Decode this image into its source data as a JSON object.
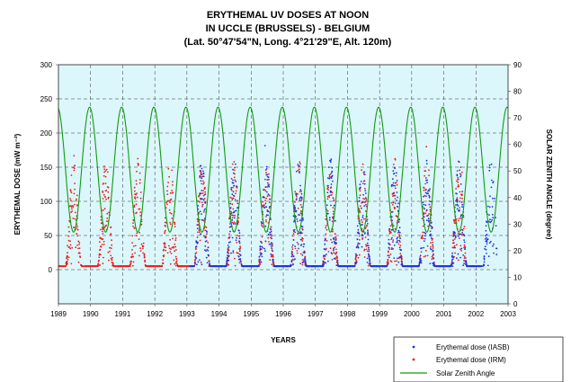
{
  "chart_data": {
    "type": "scatter",
    "title": [
      "ERYTHEMAL UV DOSES AT NOON",
      "IN UCCLE (BRUSSELS) - BELGIUM",
      "(Lat. 50°47'54\"N, Long. 4°21'29\"E, Alt. 120m)"
    ],
    "xlabel": "YEARS",
    "ylabel": "ERYTHEMAL DOSE (mW m⁻²)",
    "y2label": "SOLAR ZENITH ANGLE (degree)",
    "xlim": [
      1989,
      2003
    ],
    "ylim": [
      -50,
      300
    ],
    "y2lim": [
      0,
      90
    ],
    "x_ticks": [
      "1989",
      "1990",
      "1991",
      "1992",
      "1993",
      "1994",
      "1995",
      "1996",
      "1997",
      "1998",
      "1999",
      "2000",
      "2001",
      "2002",
      "2003"
    ],
    "y_ticks": [
      "0",
      "50",
      "100",
      "150",
      "200",
      "250",
      "300"
    ],
    "y2_ticks": [
      "0",
      "10",
      "20",
      "30",
      "40",
      "50",
      "60",
      "70",
      "80",
      "90"
    ],
    "grid": true,
    "background": "#dcf7fb",
    "legend_position": "bottom-right, outside plot",
    "series": [
      {
        "name": "Erythemal dose (IASB)",
        "kind": "scatter",
        "color": "#1f35e0",
        "axis": "left",
        "x_range": [
          1993.1,
          2002.65
        ],
        "seasonal_peak_y": 160,
        "seasonal_min_y": 5
      },
      {
        "name": "Erythemal dose (IRM)",
        "kind": "scatter",
        "color": "#ee1c1c",
        "axis": "left",
        "x_range": [
          1989.0,
          2002.05
        ],
        "seasonal_peak_y": 160,
        "seasonal_min_y": 5
      },
      {
        "name": "Solar Zenith Angle",
        "kind": "line",
        "color": "#129a12",
        "axis": "right",
        "x_range": [
          1989.0,
          2003.0
        ],
        "min_value": 27,
        "max_value": 74,
        "min_at": "late June each year"
      }
    ]
  }
}
